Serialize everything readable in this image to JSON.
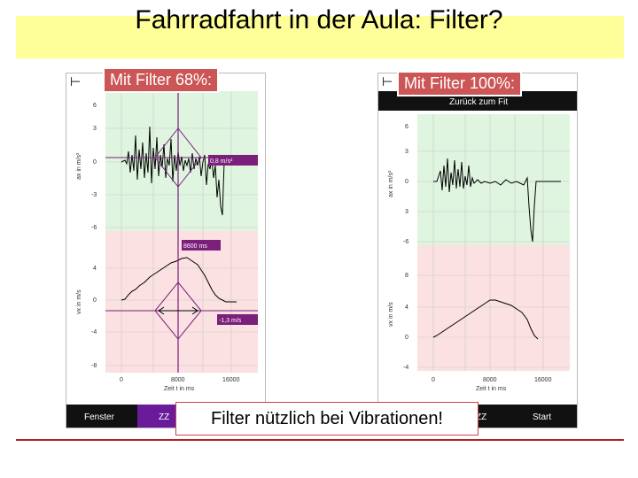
{
  "slide": {
    "title": "Fahrradfahrt in der Aula: Filter?",
    "label_left": "Mit Filter 68%:",
    "label_right": "Mit Filter 100%:",
    "footnote": "Filter nützlich bei Vibrationen!"
  },
  "left_phone": {
    "ax_label": "ax in m/s²",
    "vx_label": "vx in m/s",
    "ax_ticks": [
      "6",
      "3",
      "0",
      "-3",
      "-6"
    ],
    "vx_ticks": [
      "4",
      "0",
      "-4",
      "-8"
    ],
    "x_ticks": [
      "0",
      "8000",
      "16000"
    ],
    "x_label": "Zeit t in ms",
    "cursor_ax": "0,8 m/s²",
    "cursor_time": "8600 ms",
    "cursor_vx": "-1,3 m/s",
    "button_left": "Fenster",
    "button_mid": "ZZ"
  },
  "right_phone": {
    "top_button": "Zurück zum Fit",
    "ax_label": "ax in m/s²",
    "vx_label": "vx in m/s",
    "ax_ticks": [
      "6",
      "3",
      "0",
      "3",
      "-6"
    ],
    "vx_ticks": [
      "8",
      "4",
      "0",
      "-4"
    ],
    "x_ticks": [
      "0",
      "8000",
      "16000"
    ],
    "x_label": "Zeit t in ms",
    "button_mid": "ZZ",
    "button_right": "Start"
  },
  "colors": {
    "title_bg": "#ffff99",
    "label_bg": "#cc5555",
    "rule": "#b22222",
    "accel_bg": "#dff5df",
    "vel_bg": "#fbe1e1",
    "cursor": "#7a1f7a",
    "toolbar": "#111111",
    "toolbar_active": "#6a1b9a"
  }
}
